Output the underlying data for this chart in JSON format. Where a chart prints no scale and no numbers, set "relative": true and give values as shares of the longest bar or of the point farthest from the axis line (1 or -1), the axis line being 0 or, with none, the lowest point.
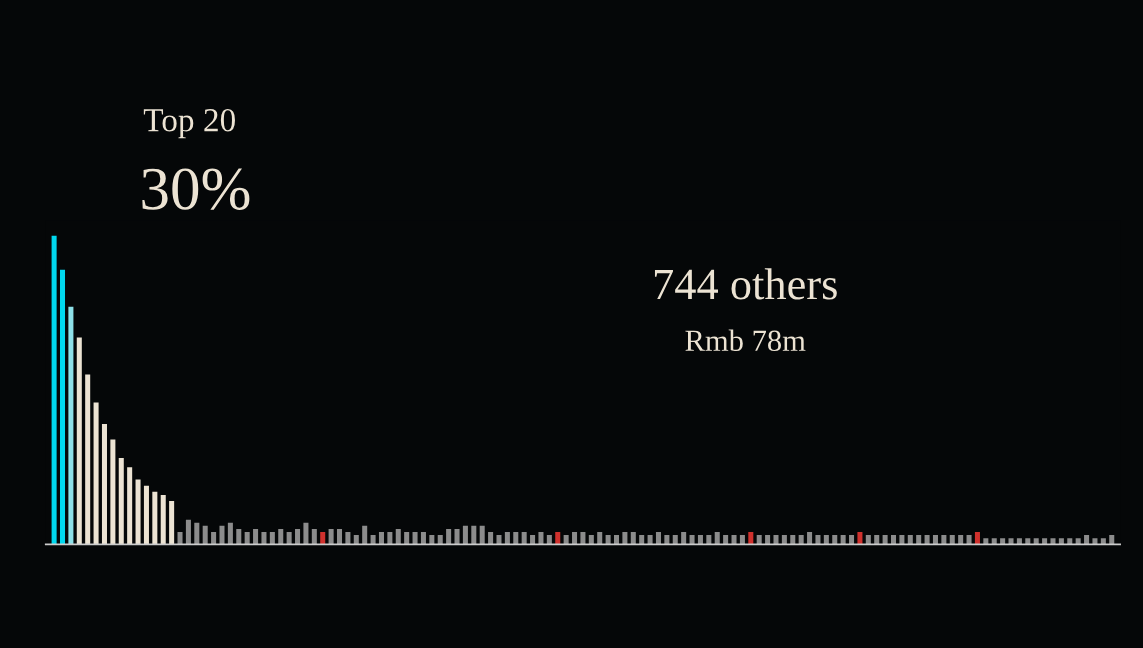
{
  "chart_data": {
    "type": "bar",
    "relative": true,
    "annotations": [
      "Top 20",
      "30%",
      "744 others",
      "Rmb 78m"
    ],
    "categories": [
      null,
      null,
      null,
      null,
      null,
      null,
      null,
      null,
      null,
      null,
      null,
      null,
      null,
      null,
      null,
      null,
      null,
      null,
      null,
      null,
      null,
      null,
      null,
      null,
      null,
      null,
      null,
      null,
      null,
      null,
      null,
      null,
      null,
      null,
      null,
      null,
      null,
      null,
      null,
      null,
      null,
      null,
      null,
      null,
      null,
      null,
      null,
      null,
      null,
      null,
      null,
      null,
      null,
      null,
      null,
      null,
      null,
      null,
      null,
      null,
      null,
      null,
      null,
      null,
      null,
      null,
      null,
      null,
      null,
      null,
      null,
      null,
      null,
      null,
      null,
      null,
      null,
      null,
      null,
      null,
      null,
      null,
      null,
      null,
      null,
      null,
      null,
      null,
      null,
      null,
      null,
      null,
      null,
      null,
      null,
      null,
      null,
      null,
      null,
      null,
      null,
      null,
      null,
      null,
      null,
      null,
      null,
      null,
      null,
      null,
      null,
      null,
      null,
      null,
      null,
      null,
      null,
      null,
      null,
      null,
      null,
      null,
      null,
      null,
      null,
      null,
      null
    ],
    "values": [
      1,
      0.89,
      0.77,
      0.67,
      0.55,
      0.46,
      0.39,
      0.34,
      0.28,
      0.25,
      0.21,
      0.19,
      0.17,
      0.16,
      0.14,
      0.04,
      0.08,
      0.07,
      0.06,
      0.04,
      0.06,
      0.07,
      0.05,
      0.04,
      0.05,
      0.04,
      0.04,
      0.05,
      0.04,
      0.05,
      0.07,
      0.05,
      0.04,
      0.05,
      0.05,
      0.04,
      0.03,
      0.06,
      0.03,
      0.04,
      0.04,
      0.05,
      0.04,
      0.04,
      0.04,
      0.03,
      0.03,
      0.05,
      0.05,
      0.06,
      0.06,
      0.06,
      0.04,
      0.03,
      0.04,
      0.04,
      0.04,
      0.03,
      0.04,
      0.03,
      0.04,
      0.03,
      0.04,
      0.04,
      0.03,
      0.04,
      0.03,
      0.03,
      0.04,
      0.04,
      0.03,
      0.03,
      0.04,
      0.03,
      0.03,
      0.04,
      0.03,
      0.03,
      0.03,
      0.04,
      0.03,
      0.03,
      0.03,
      0.04,
      0.03,
      0.03,
      0.03,
      0.03,
      0.03,
      0.03,
      0.04,
      0.03,
      0.03,
      0.03,
      0.03,
      0.03,
      0.04,
      0.03,
      0.03,
      0.03,
      0.03,
      0.03,
      0.03,
      0.03,
      0.03,
      0.03,
      0.03,
      0.03,
      0.03,
      0.03,
      0.04,
      0.02,
      0.02,
      0.02,
      0.02,
      0.02,
      0.02,
      0.02,
      0.02,
      0.02,
      0.02,
      0.02,
      0.02,
      0.03,
      0.02,
      0.02,
      0.03
    ],
    "colors": [
      "#00d8ef",
      "#00d8ef",
      "#8ee0e8",
      "#ece3d3",
      "#ece3d3",
      "#ece3d3",
      "#ece3d3",
      "#ece3d3",
      "#ece3d3",
      "#ece3d3",
      "#ece3d3",
      "#ece3d3",
      "#ece3d3",
      "#ece3d3",
      "#ece3d3",
      "#8c8c8c",
      "#8c8c8c",
      "#8c8c8c",
      "#8c8c8c",
      "#8c8c8c",
      "#8c8c8c",
      "#8c8c8c",
      "#8c8c8c",
      "#8c8c8c",
      "#8c8c8c",
      "#8c8c8c",
      "#8c8c8c",
      "#8c8c8c",
      "#8c8c8c",
      "#8c8c8c",
      "#8c8c8c",
      "#8c8c8c",
      "#d0312d",
      "#8c8c8c",
      "#8c8c8c",
      "#8c8c8c",
      "#8c8c8c",
      "#8c8c8c",
      "#8c8c8c",
      "#8c8c8c",
      "#8c8c8c",
      "#8c8c8c",
      "#8c8c8c",
      "#8c8c8c",
      "#8c8c8c",
      "#8c8c8c",
      "#8c8c8c",
      "#8c8c8c",
      "#8c8c8c",
      "#8c8c8c",
      "#8c8c8c",
      "#8c8c8c",
      "#8c8c8c",
      "#8c8c8c",
      "#8c8c8c",
      "#8c8c8c",
      "#8c8c8c",
      "#8c8c8c",
      "#8c8c8c",
      "#8c8c8c",
      "#d0312d",
      "#8c8c8c",
      "#8c8c8c",
      "#8c8c8c",
      "#8c8c8c",
      "#8c8c8c",
      "#8c8c8c",
      "#8c8c8c",
      "#8c8c8c",
      "#8c8c8c",
      "#8c8c8c",
      "#8c8c8c",
      "#8c8c8c",
      "#8c8c8c",
      "#8c8c8c",
      "#8c8c8c",
      "#8c8c8c",
      "#8c8c8c",
      "#8c8c8c",
      "#8c8c8c",
      "#8c8c8c",
      "#8c8c8c",
      "#8c8c8c",
      "#d0312d",
      "#8c8c8c",
      "#8c8c8c",
      "#8c8c8c",
      "#8c8c8c",
      "#8c8c8c",
      "#8c8c8c",
      "#8c8c8c",
      "#8c8c8c",
      "#8c8c8c",
      "#8c8c8c",
      "#8c8c8c",
      "#8c8c8c",
      "#d0312d",
      "#8c8c8c",
      "#8c8c8c",
      "#8c8c8c",
      "#8c8c8c",
      "#8c8c8c",
      "#8c8c8c",
      "#8c8c8c",
      "#8c8c8c",
      "#8c8c8c",
      "#8c8c8c",
      "#8c8c8c",
      "#8c8c8c",
      "#8c8c8c",
      "#d0312d",
      "#8c8c8c",
      "#8c8c8c",
      "#8c8c8c",
      "#8c8c8c",
      "#8c8c8c",
      "#8c8c8c",
      "#8c8c8c",
      "#8c8c8c",
      "#8c8c8c",
      "#8c8c8c",
      "#8c8c8c",
      "#8c8c8c",
      "#8c8c8c",
      "#8c8c8c",
      "#8c8c8c",
      "#8c8c8c"
    ]
  }
}
